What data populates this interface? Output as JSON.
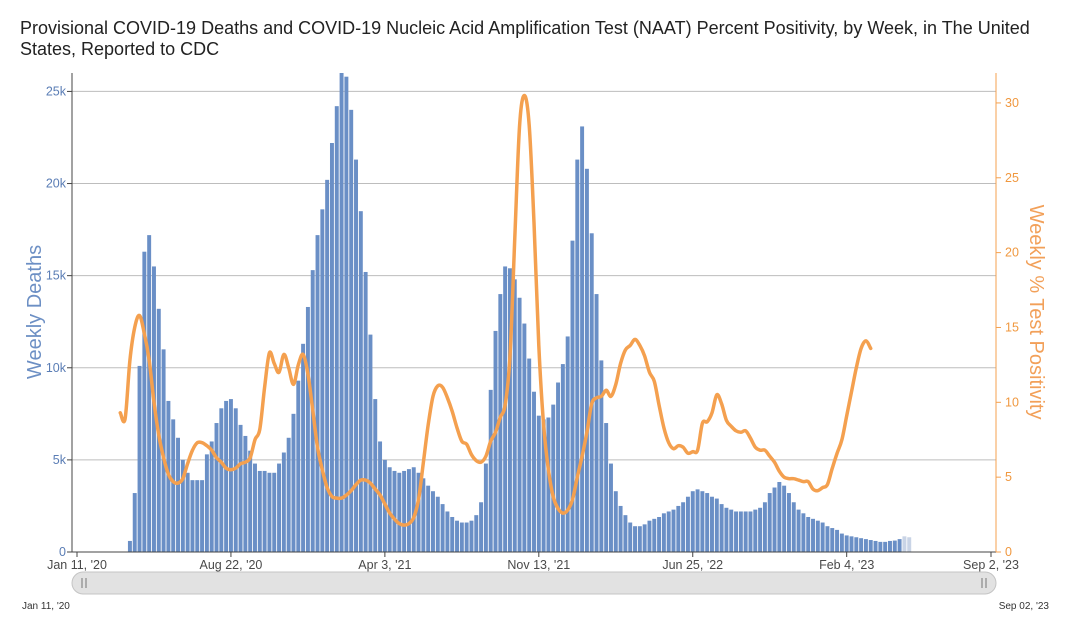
{
  "title": "Provisional COVID-19 Deaths and COVID-19 Nucleic Acid Amplification Test (NAAT) Percent Positivity, by Week, in The United States, Reported to CDC",
  "colors": {
    "bars": "#6a8fc6",
    "bars_provisional": "#c9d4e6",
    "line": "#f4a04f",
    "grid": "#bdbdbd"
  },
  "chart_data": {
    "type": "bar",
    "title": "Provisional COVID-19 Deaths and COVID-19 Nucleic Acid Amplification Test (NAAT) Percent Positivity, by Week, in The United States, Reported to CDC",
    "x_start": "2020-01-11",
    "x_end": "2023-09-02",
    "week_interval_days": 7,
    "x_tick_labels": [
      "Jan 11, '20",
      "Aug 22, '20",
      "Apr 3, '21",
      "Nov 13, '21",
      "Jun 25, '22",
      "Feb 4, '23",
      "Sep 2, '23"
    ],
    "y_left": {
      "label": "Weekly Deaths",
      "range": [
        0,
        26000
      ],
      "tick_labels": [
        "0",
        "5k",
        "10k",
        "15k",
        "20k",
        "25k"
      ],
      "tick_values": [
        0,
        5000,
        10000,
        15000,
        20000,
        25000
      ]
    },
    "y_right": {
      "label": "Weekly % Test Positivity",
      "range": [
        0,
        32
      ],
      "tick_labels": [
        "0",
        "5",
        "10",
        "15",
        "20",
        "25",
        "30"
      ],
      "tick_values": [
        0,
        5,
        10,
        15,
        20,
        25,
        30
      ]
    },
    "grid": true,
    "series": [
      {
        "name": "Weekly Deaths",
        "type": "bar",
        "first_week": "2020-01-11",
        "provisional_last_n": 2,
        "values": [
          0,
          0,
          0,
          0,
          0,
          0,
          0,
          0,
          0,
          0,
          0,
          600,
          3200,
          10100,
          16300,
          17200,
          15500,
          13200,
          11000,
          8200,
          7200,
          6200,
          5000,
          4300,
          3900,
          3900,
          3900,
          5300,
          6000,
          7000,
          7800,
          8200,
          8300,
          7800,
          6900,
          6300,
          5500,
          4800,
          4400,
          4400,
          4300,
          4300,
          4800,
          5400,
          6200,
          7500,
          9300,
          11300,
          13300,
          15300,
          17200,
          18600,
          20200,
          22200,
          24200,
          26000,
          25800,
          24000,
          21300,
          18500,
          15200,
          11800,
          8300,
          6000,
          5000,
          4600,
          4400,
          4300,
          4400,
          4500,
          4600,
          4300,
          4000,
          3600,
          3300,
          3000,
          2600,
          2200,
          1900,
          1700,
          1600,
          1600,
          1700,
          2000,
          2700,
          4800,
          8800,
          12000,
          14000,
          15500,
          15400,
          14800,
          13800,
          12400,
          10500,
          8700,
          7400,
          7200,
          7300,
          8000,
          9200,
          10200,
          11700,
          16900,
          21300,
          23100,
          20800,
          17300,
          14000,
          10400,
          7000,
          4800,
          3300,
          2500,
          2000,
          1600,
          1400,
          1400,
          1500,
          1700,
          1800,
          1900,
          2100,
          2200,
          2300,
          2500,
          2700,
          3000,
          3300,
          3400,
          3300,
          3200,
          3000,
          2900,
          2600,
          2400,
          2300,
          2200,
          2200,
          2200,
          2200,
          2300,
          2400,
          2700,
          3200,
          3500,
          3800,
          3600,
          3200,
          2700,
          2300,
          2100,
          1900,
          1800,
          1700,
          1600,
          1400,
          1300,
          1200,
          1000,
          900,
          850,
          800,
          750,
          700,
          650,
          600,
          550,
          550,
          600,
          620,
          700,
          850,
          800
        ]
      },
      {
        "name": "Weekly % Test Positivity",
        "type": "line",
        "first_week": "2020-03-14",
        "values": [
          9.3,
          8.9,
          12.8,
          15.0,
          15.8,
          14.6,
          12.8,
          10.0,
          7.8,
          6.3,
          5.2,
          4.7,
          4.6,
          4.9,
          5.9,
          6.8,
          7.3,
          7.3,
          7.1,
          6.8,
          6.3,
          6.0,
          5.6,
          5.5,
          5.6,
          5.9,
          6.0,
          6.3,
          7.5,
          8.2,
          11.0,
          13.3,
          12.6,
          12.0,
          13.2,
          12.3,
          11.2,
          12.5,
          13.2,
          11.9,
          9.5,
          7.0,
          5.5,
          4.3,
          3.7,
          3.6,
          3.6,
          3.8,
          4.1,
          4.5,
          4.8,
          4.8,
          4.6,
          4.2,
          3.8,
          3.2,
          2.6,
          2.2,
          1.9,
          1.8,
          1.9,
          2.3,
          3.5,
          6.0,
          8.5,
          10.4,
          11.1,
          11.0,
          10.3,
          9.4,
          8.3,
          7.4,
          7.2,
          6.5,
          6.1,
          6.0,
          6.4,
          7.4,
          8.0,
          9.0,
          9.8,
          13.0,
          21.0,
          28.5,
          30.5,
          28.5,
          22.0,
          13.8,
          8.5,
          5.5,
          3.7,
          2.9,
          2.6,
          2.8,
          3.5,
          5.0,
          6.4,
          8.0,
          9.9,
          10.3,
          10.4,
          10.8,
          10.4,
          11.2,
          12.6,
          13.5,
          13.8,
          14.2,
          13.8,
          13.1,
          12.0,
          11.4,
          9.8,
          8.3,
          7.3,
          6.9,
          7.1,
          7.0,
          6.6,
          6.7,
          6.8,
          8.6,
          8.7,
          9.3,
          10.5,
          9.9,
          8.8,
          8.4,
          8.1,
          8.0,
          8.1,
          7.6,
          7.0,
          6.8,
          6.8,
          6.4,
          6.0,
          5.4,
          5.0,
          4.9,
          4.9,
          4.8,
          4.7,
          4.7,
          4.2,
          4.1,
          4.3,
          4.5,
          5.6,
          6.6,
          7.5,
          9.1,
          10.7,
          12.3,
          13.6,
          14.1,
          13.6
        ]
      }
    ]
  },
  "slider": {
    "start_label": "Jan 11, '20",
    "end_label": "Sep 02, '23"
  }
}
